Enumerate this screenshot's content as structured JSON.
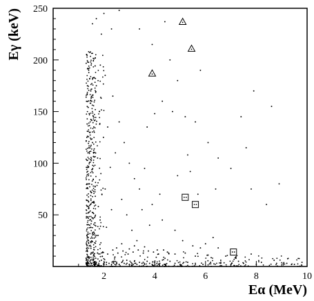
{
  "chart_data": {
    "type": "scatter",
    "title": "",
    "xlabel": "Eα (MeV)",
    "ylabel": "Eγ (keV)",
    "xlim": [
      0,
      10
    ],
    "ylim": [
      0,
      250
    ],
    "x_ticks": [
      2,
      4,
      6,
      8,
      10
    ],
    "y_ticks": [
      50,
      100,
      150,
      200,
      250
    ],
    "grid": false,
    "legend": "none",
    "colors": {
      "points": "#000000",
      "axes": "#000000",
      "background": "#ffffff"
    },
    "dense_band": {
      "note_values_only": true,
      "x_range": [
        1.3,
        2.0
      ],
      "y_range": [
        0,
        210
      ]
    },
    "scatter_points": [
      [
        1.32,
        205
      ],
      [
        1.36,
        198
      ],
      [
        1.4,
        190
      ],
      [
        1.44,
        182
      ],
      [
        1.35,
        175
      ],
      [
        1.48,
        170
      ],
      [
        1.3,
        164
      ],
      [
        1.52,
        160
      ],
      [
        1.38,
        154
      ],
      [
        1.42,
        148
      ],
      [
        1.5,
        142
      ],
      [
        1.34,
        138
      ],
      [
        1.6,
        135
      ],
      [
        1.45,
        130
      ],
      [
        1.33,
        125
      ],
      [
        1.55,
        120
      ],
      [
        1.41,
        115
      ],
      [
        1.37,
        110
      ],
      [
        1.62,
        106
      ],
      [
        1.46,
        101
      ],
      [
        1.31,
        96
      ],
      [
        1.53,
        92
      ],
      [
        1.39,
        88
      ],
      [
        1.58,
        84
      ],
      [
        1.43,
        80
      ],
      [
        1.35,
        76
      ],
      [
        1.49,
        72
      ],
      [
        1.66,
        68
      ],
      [
        1.32,
        64
      ],
      [
        1.47,
        60
      ],
      [
        1.4,
        56
      ],
      [
        1.57,
        52
      ],
      [
        1.36,
        48
      ],
      [
        1.51,
        44
      ],
      [
        1.44,
        40
      ],
      [
        1.33,
        36
      ],
      [
        1.62,
        32
      ],
      [
        1.38,
        28
      ],
      [
        1.55,
        24
      ],
      [
        1.42,
        20
      ],
      [
        1.34,
        16
      ],
      [
        1.48,
        12
      ],
      [
        1.3,
        8
      ],
      [
        1.45,
        5
      ],
      [
        1.52,
        3
      ],
      [
        1.6,
        2
      ],
      [
        1.7,
        4
      ],
      [
        1.8,
        3
      ],
      [
        1.9,
        6
      ],
      [
        2.0,
        2
      ],
      [
        2.1,
        4
      ],
      [
        2.2,
        3
      ],
      [
        2.3,
        2
      ],
      [
        2.4,
        5
      ],
      [
        2.5,
        3
      ],
      [
        2.6,
        2
      ],
      [
        2.7,
        4
      ],
      [
        2.8,
        3
      ],
      [
        2.9,
        6
      ],
      [
        3.0,
        2
      ],
      [
        3.1,
        3
      ],
      [
        3.2,
        5
      ],
      [
        3.3,
        2
      ],
      [
        3.4,
        4
      ],
      [
        3.5,
        3
      ],
      [
        3.6,
        2
      ],
      [
        3.7,
        5
      ],
      [
        3.8,
        3
      ],
      [
        3.9,
        2
      ],
      [
        4.0,
        4
      ],
      [
        4.2,
        3
      ],
      [
        4.4,
        2
      ],
      [
        4.6,
        5
      ],
      [
        4.8,
        3
      ],
      [
        5.0,
        2
      ],
      [
        5.3,
        4
      ],
      [
        5.6,
        3
      ],
      [
        5.9,
        2
      ],
      [
        6.2,
        4
      ],
      [
        6.6,
        3
      ],
      [
        7.0,
        2
      ],
      [
        7.5,
        3
      ],
      [
        8.0,
        2
      ],
      [
        8.8,
        3
      ],
      [
        9.5,
        2
      ],
      [
        1.95,
        14
      ],
      [
        2.15,
        12
      ],
      [
        2.35,
        16
      ],
      [
        2.55,
        13
      ],
      [
        2.75,
        15
      ],
      [
        2.95,
        12
      ],
      [
        3.15,
        14
      ],
      [
        3.35,
        16
      ],
      [
        3.55,
        13
      ],
      [
        3.75,
        15
      ],
      [
        3.95,
        14
      ],
      [
        4.15,
        12
      ],
      [
        4.35,
        16
      ],
      [
        4.55,
        13
      ],
      [
        1.72,
        30
      ],
      [
        1.85,
        45
      ],
      [
        1.78,
        58
      ],
      [
        1.92,
        70
      ],
      [
        1.88,
        90
      ],
      [
        1.75,
        105
      ],
      [
        1.98,
        125
      ],
      [
        1.82,
        150
      ],
      [
        1.7,
        175
      ],
      [
        1.86,
        195
      ],
      [
        2.1,
        38
      ],
      [
        2.3,
        55
      ],
      [
        2.05,
        75
      ],
      [
        2.25,
        96
      ],
      [
        2.45,
        110
      ],
      [
        2.15,
        135
      ],
      [
        2.35,
        165
      ],
      [
        2.05,
        185
      ],
      [
        2.6,
        140
      ],
      [
        2.8,
        120
      ],
      [
        3.0,
        100
      ],
      [
        3.2,
        85
      ],
      [
        2.7,
        65
      ],
      [
        2.9,
        50
      ],
      [
        3.1,
        35
      ],
      [
        3.3,
        25
      ],
      [
        1.55,
        235
      ],
      [
        1.7,
        240
      ],
      [
        1.9,
        225
      ],
      [
        2.0,
        245
      ],
      [
        2.3,
        230
      ],
      [
        2.6,
        248
      ],
      [
        3.4,
        230
      ],
      [
        4.4,
        237
      ],
      [
        3.9,
        215
      ],
      [
        4.7,
        150
      ],
      [
        5.2,
        145
      ],
      [
        5.6,
        140
      ],
      [
        6.1,
        120
      ],
      [
        6.5,
        105
      ],
      [
        7.0,
        95
      ],
      [
        7.4,
        145
      ],
      [
        7.9,
        170
      ],
      [
        8.6,
        155
      ],
      [
        7.6,
        115
      ],
      [
        7.8,
        75
      ],
      [
        8.4,
        60
      ],
      [
        8.9,
        80
      ],
      [
        4.0,
        148
      ],
      [
        4.3,
        160
      ],
      [
        3.7,
        135
      ],
      [
        3.5,
        55
      ],
      [
        3.9,
        60
      ],
      [
        4.3,
        45
      ],
      [
        4.8,
        35
      ],
      [
        5.1,
        25
      ],
      [
        5.5,
        20
      ],
      [
        5.8,
        18
      ],
      [
        6.0,
        22
      ],
      [
        6.3,
        28
      ],
      [
        6.5,
        18
      ],
      [
        6.8,
        10
      ],
      [
        7.2,
        8
      ],
      [
        4.2,
        70
      ],
      [
        4.9,
        88
      ],
      [
        5.4,
        92
      ],
      [
        5.7,
        70
      ],
      [
        6.4,
        75
      ],
      [
        5.3,
        108
      ],
      [
        4.6,
        200
      ],
      [
        4.9,
        180
      ],
      [
        5.8,
        190
      ],
      [
        3.6,
        95
      ],
      [
        3.4,
        75
      ],
      [
        3.8,
        40
      ],
      [
        3.2,
        20
      ],
      [
        2.5,
        18
      ],
      [
        2.7,
        22
      ],
      [
        3.0,
        17
      ],
      [
        3.6,
        19
      ],
      [
        4.1,
        16
      ],
      [
        4.5,
        14
      ],
      [
        4.8,
        12
      ],
      [
        5.2,
        13
      ],
      [
        5.6,
        10
      ],
      [
        6.1,
        11
      ],
      [
        6.6,
        6
      ],
      [
        7.3,
        5
      ],
      [
        7.8,
        12
      ],
      [
        8.2,
        4
      ],
      [
        8.7,
        6
      ],
      [
        9.2,
        3
      ],
      [
        9.8,
        4
      ]
    ],
    "triangle_markers": [
      [
        5.1,
        237
      ],
      [
        5.45,
        211
      ],
      [
        3.9,
        187
      ]
    ],
    "square_markers": [
      [
        5.2,
        67
      ],
      [
        5.6,
        60
      ],
      [
        7.1,
        14
      ]
    ]
  },
  "axes": {
    "x_tick_labels": [
      "2",
      "4",
      "6",
      "8",
      "10"
    ],
    "y_tick_labels": [
      "50",
      "100",
      "150",
      "200",
      "250"
    ]
  }
}
